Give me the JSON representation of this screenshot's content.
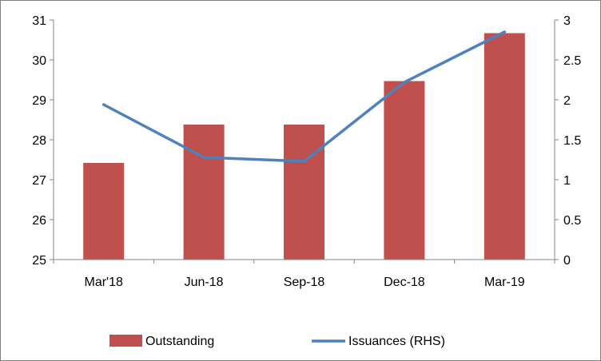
{
  "chart_data": {
    "type": "bar+line",
    "categories": [
      "Mar'18",
      "Jun-18",
      "Sep-18",
      "Dec-18",
      "Mar-19"
    ],
    "series": [
      {
        "name": "Outstanding",
        "type": "bar",
        "axis": "left",
        "color": "#c0504d",
        "values": [
          27.42,
          28.38,
          28.38,
          29.47,
          30.67
        ]
      },
      {
        "name": "Issuances (RHS)",
        "type": "line",
        "axis": "right",
        "color": "#4f81bd",
        "values": [
          1.94,
          1.28,
          1.23,
          2.22,
          2.85
        ]
      }
    ],
    "y_left": {
      "min": 25,
      "max": 31,
      "ticks": [
        "25",
        "26",
        "27",
        "28",
        "29",
        "30",
        "31"
      ]
    },
    "y_right": {
      "min": 0,
      "max": 3,
      "ticks": [
        "0",
        "0.5",
        "1",
        "1.5",
        "2",
        "2.5",
        "3"
      ]
    },
    "grid": false,
    "legend_position": "bottom",
    "title": "",
    "xlabel": "",
    "ylabel": ""
  }
}
